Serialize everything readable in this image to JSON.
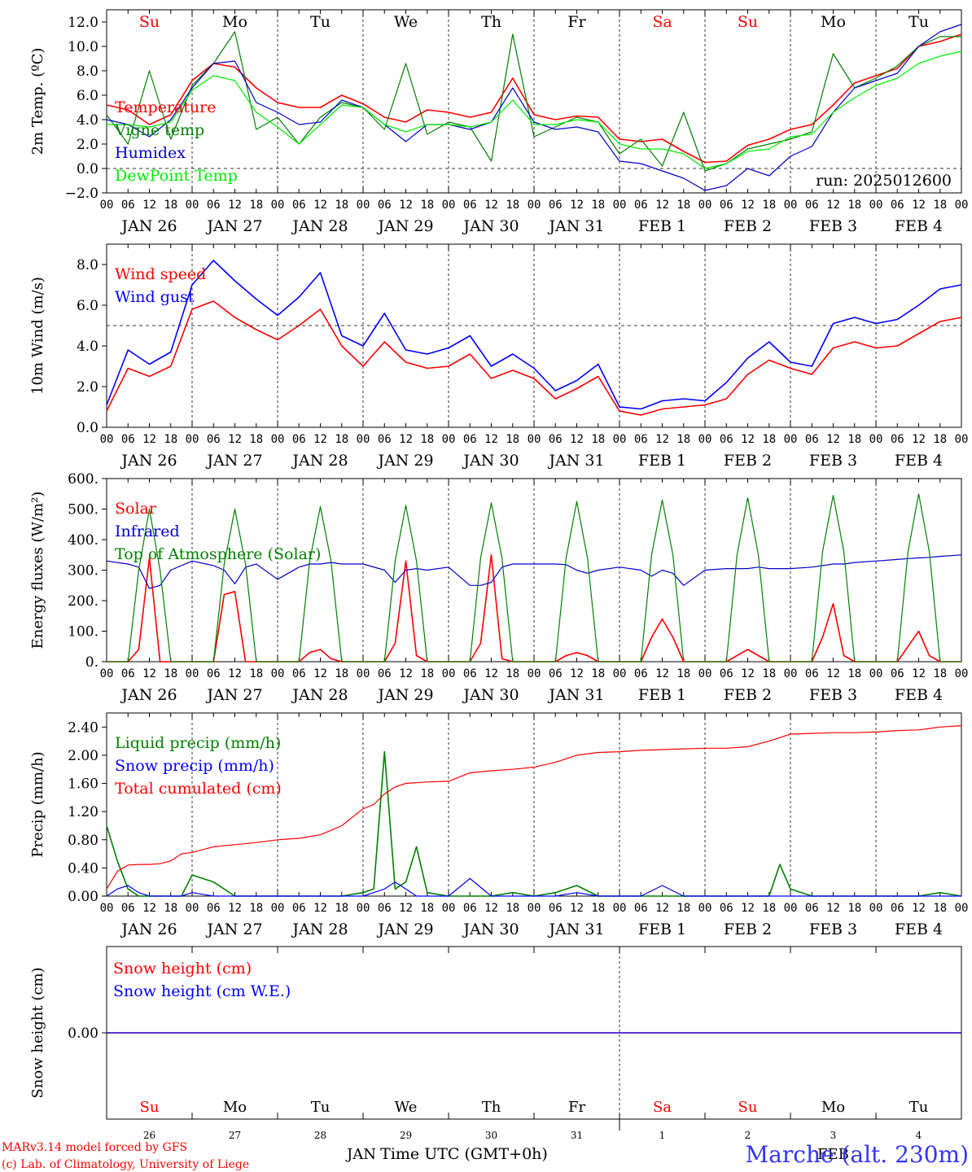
{
  "chart_data": [
    {
      "type": "line",
      "ylabel": "2m Temp. (ºC)",
      "ylim": [
        -2,
        12
      ],
      "yticks": [
        "12.0",
        "10.0",
        "8.0",
        "6.0",
        "4.0",
        "2.0",
        "0.0",
        "−2.0"
      ],
      "reference_line": 0,
      "run_label": "run: 2025012600",
      "x_hours": [
        0,
        6,
        12,
        18,
        24,
        30,
        36,
        42,
        48,
        54,
        60,
        66,
        72,
        78,
        84,
        90,
        96,
        102,
        108,
        114,
        120,
        126,
        132,
        138,
        144,
        150,
        156,
        162,
        168,
        174,
        180,
        186,
        192,
        198,
        204,
        210,
        216,
        222,
        228,
        234,
        240
      ],
      "series": [
        {
          "name": "Temperature",
          "color": "#ff0000",
          "values": [
            5.2,
            4.8,
            3.6,
            4.4,
            7.2,
            8.6,
            8.3,
            6.6,
            5.4,
            5.0,
            5.0,
            6.0,
            5.3,
            4.2,
            3.8,
            4.8,
            4.6,
            4.2,
            4.6,
            7.4,
            4.4,
            4.0,
            4.3,
            4.2,
            2.4,
            2.2,
            2.4,
            1.4,
            0.5,
            0.6,
            1.9,
            2.4,
            3.2,
            3.6,
            5.2,
            7.0,
            7.6,
            8.2,
            10.0,
            10.4,
            11.0
          ]
        },
        {
          "name": "Vigne temp",
          "color": "#008000",
          "values": [
            4.4,
            2.0,
            8.0,
            2.4,
            6.8,
            8.6,
            11.2,
            3.2,
            4.2,
            2.0,
            4.2,
            5.4,
            5.0,
            3.2,
            8.6,
            2.8,
            3.8,
            3.4,
            0.6,
            11.0,
            2.6,
            3.4,
            4.2,
            3.8,
            1.2,
            2.4,
            0.2,
            4.6,
            -0.2,
            0.4,
            1.6,
            2.0,
            2.4,
            3.0,
            9.4,
            6.6,
            7.4,
            8.4,
            10.0,
            10.8,
            10.8
          ]
        },
        {
          "name": "Humidex",
          "color": "#0000cc",
          "values": [
            4.0,
            3.6,
            2.6,
            4.0,
            6.6,
            8.6,
            8.8,
            5.4,
            4.6,
            3.6,
            3.8,
            5.6,
            5.0,
            3.6,
            2.2,
            3.6,
            3.6,
            3.2,
            3.8,
            6.6,
            3.8,
            3.2,
            3.4,
            3.0,
            0.6,
            0.4,
            -0.2,
            -0.8,
            -1.8,
            -1.4,
            0.0,
            -0.6,
            1.0,
            1.8,
            4.6,
            6.6,
            7.2,
            7.8,
            10.0,
            11.2,
            11.8
          ]
        },
        {
          "name": "DewPoint Temp",
          "color": "#00ee00",
          "values": [
            3.6,
            3.6,
            3.4,
            3.8,
            6.4,
            7.6,
            7.2,
            4.6,
            3.4,
            2.0,
            3.6,
            5.2,
            5.0,
            3.6,
            3.0,
            3.6,
            3.6,
            3.4,
            3.8,
            5.6,
            3.6,
            3.6,
            4.0,
            3.8,
            2.0,
            1.6,
            1.6,
            1.2,
            0.0,
            0.4,
            1.4,
            1.6,
            2.6,
            2.8,
            4.6,
            5.8,
            6.8,
            7.4,
            8.6,
            9.2,
            9.6
          ]
        }
      ]
    },
    {
      "type": "line",
      "ylabel": "10m Wind (m/s)",
      "ylim": [
        0,
        9
      ],
      "yticks": [
        "8.0",
        "6.0",
        "4.0",
        "2.0",
        "0.0"
      ],
      "reference_line": 5,
      "x_hours": [
        0,
        6,
        12,
        18,
        24,
        30,
        36,
        42,
        48,
        54,
        60,
        66,
        72,
        78,
        84,
        90,
        96,
        102,
        108,
        114,
        120,
        126,
        132,
        138,
        144,
        150,
        156,
        162,
        168,
        174,
        180,
        186,
        192,
        198,
        204,
        210,
        216,
        222,
        228,
        234,
        240
      ],
      "series": [
        {
          "name": "Wind speed",
          "color": "#ff0000",
          "values": [
            0.8,
            2.9,
            2.5,
            3.0,
            5.8,
            6.2,
            5.4,
            4.8,
            4.3,
            5.0,
            5.8,
            4.0,
            3.0,
            4.2,
            3.2,
            2.9,
            3.0,
            3.6,
            2.4,
            2.8,
            2.4,
            1.4,
            1.9,
            2.5,
            0.8,
            0.6,
            0.9,
            1.0,
            1.1,
            1.4,
            2.6,
            3.3,
            2.9,
            2.6,
            3.9,
            4.2,
            3.9,
            4.0,
            4.6,
            5.2,
            5.4
          ]
        },
        {
          "name": "Wind gust",
          "color": "#0000ff",
          "values": [
            1.1,
            3.8,
            3.1,
            3.7,
            7.0,
            8.2,
            7.2,
            6.3,
            5.5,
            6.4,
            7.6,
            4.5,
            4.0,
            5.6,
            3.8,
            3.6,
            3.9,
            4.5,
            3.0,
            3.6,
            2.9,
            1.8,
            2.3,
            3.1,
            1.0,
            0.9,
            1.3,
            1.4,
            1.3,
            2.2,
            3.4,
            4.2,
            3.2,
            3.0,
            5.1,
            5.4,
            5.1,
            5.3,
            6.0,
            6.8,
            7.0
          ]
        }
      ]
    },
    {
      "type": "line",
      "ylabel": "Energy fluxes (W/m²)",
      "ylim": [
        0,
        600
      ],
      "yticks": [
        "600.",
        "500.",
        "400.",
        "300.",
        "200.",
        "100.",
        "0."
      ],
      "x_hours": [
        0,
        6,
        9,
        12,
        15,
        18,
        24,
        30,
        33,
        36,
        39,
        42,
        48,
        54,
        57,
        60,
        63,
        66,
        72,
        78,
        81,
        84,
        87,
        90,
        96,
        102,
        105,
        108,
        111,
        114,
        120,
        126,
        129,
        132,
        135,
        138,
        144,
        150,
        153,
        156,
        159,
        162,
        168,
        174,
        177,
        180,
        183,
        186,
        192,
        198,
        201,
        204,
        207,
        210,
        216,
        222,
        225,
        228,
        231,
        234,
        240
      ],
      "series": [
        {
          "name": "Solar",
          "color": "#ff0000",
          "values": [
            0,
            0,
            40,
            340,
            0,
            0,
            0,
            0,
            220,
            230,
            0,
            0,
            0,
            0,
            30,
            40,
            10,
            0,
            0,
            0,
            60,
            330,
            20,
            0,
            0,
            0,
            60,
            350,
            10,
            0,
            0,
            0,
            20,
            30,
            20,
            0,
            0,
            0,
            80,
            140,
            80,
            0,
            0,
            0,
            20,
            40,
            20,
            0,
            0,
            0,
            80,
            190,
            20,
            0,
            0,
            0,
            50,
            100,
            20,
            0,
            0
          ]
        },
        {
          "name": "Infrared",
          "color": "#0000cc",
          "values": [
            330,
            320,
            310,
            240,
            250,
            300,
            330,
            315,
            300,
            255,
            310,
            320,
            270,
            310,
            320,
            320,
            325,
            320,
            320,
            300,
            260,
            300,
            305,
            300,
            310,
            250,
            250,
            260,
            310,
            320,
            320,
            320,
            318,
            300,
            290,
            300,
            310,
            300,
            280,
            300,
            290,
            250,
            300,
            305,
            305,
            305,
            310,
            305,
            305,
            310,
            315,
            320,
            320,
            325,
            330,
            335,
            338,
            340,
            342,
            345,
            350
          ]
        },
        {
          "name": "Top of Atmosphere (Solar)",
          "color": "#008000",
          "values": [
            0,
            0,
            300,
            500,
            300,
            0,
            0,
            0,
            320,
            500,
            320,
            0,
            0,
            0,
            330,
            508,
            330,
            0,
            0,
            0,
            330,
            512,
            330,
            0,
            0,
            0,
            340,
            520,
            340,
            0,
            0,
            0,
            340,
            525,
            340,
            0,
            0,
            0,
            350,
            530,
            350,
            0,
            0,
            0,
            350,
            537,
            350,
            0,
            0,
            0,
            360,
            545,
            360,
            0,
            0,
            0,
            360,
            550,
            360,
            0,
            0
          ]
        }
      ]
    },
    {
      "type": "line",
      "ylabel": "Precip (mm/h)",
      "ylim": [
        0,
        2.6
      ],
      "yticks": [
        "2.40",
        "2.00",
        "1.60",
        "1.20",
        "0.80",
        "0.40",
        "0.00"
      ],
      "x_hours": [
        0,
        3,
        6,
        9,
        12,
        15,
        18,
        21,
        24,
        30,
        36,
        42,
        48,
        54,
        60,
        66,
        72,
        75,
        78,
        81,
        84,
        87,
        90,
        96,
        102,
        108,
        114,
        120,
        126,
        132,
        138,
        144,
        150,
        156,
        162,
        168,
        174,
        180,
        186,
        189,
        192,
        198,
        204,
        210,
        216,
        222,
        228,
        234,
        240
      ],
      "series": [
        {
          "name": "Liquid precip (mm/h)",
          "color": "#008000",
          "values": [
            1.0,
            0.5,
            0.1,
            0.0,
            0.0,
            0.0,
            0.0,
            0.0,
            0.3,
            0.2,
            0.0,
            0.0,
            0.0,
            0.0,
            0.0,
            0.0,
            0.05,
            0.1,
            2.05,
            0.1,
            0.2,
            0.7,
            0.05,
            0.0,
            0.0,
            0.0,
            0.05,
            0.0,
            0.05,
            0.15,
            0.0,
            0.0,
            0.0,
            0.0,
            0.0,
            0.0,
            0.0,
            0.0,
            0.0,
            0.45,
            0.1,
            0.0,
            0.0,
            0.0,
            0.0,
            0.0,
            0.0,
            0.05,
            0.0
          ]
        },
        {
          "name": "Snow precip (mm/h)",
          "color": "#0000ff",
          "values": [
            0.0,
            0.1,
            0.15,
            0.05,
            0.0,
            0.0,
            0.0,
            0.0,
            0.05,
            0.0,
            0.0,
            0.0,
            0.0,
            0.0,
            0.0,
            0.0,
            0.0,
            0.05,
            0.1,
            0.2,
            0.1,
            0.0,
            0.0,
            0.0,
            0.25,
            0.0,
            0.0,
            0.0,
            0.0,
            0.05,
            0.0,
            0.0,
            0.0,
            0.15,
            0.0,
            0.0,
            0.0,
            0.0,
            0.0,
            0.0,
            0.0,
            0.0,
            0.0,
            0.0,
            0.0,
            0.0,
            0.0,
            0.0,
            0.0
          ]
        },
        {
          "name": "Total cumulated (cm)",
          "color": "#ff0000",
          "values": [
            0.1,
            0.35,
            0.44,
            0.45,
            0.45,
            0.46,
            0.5,
            0.6,
            0.62,
            0.7,
            0.73,
            0.76,
            0.8,
            0.82,
            0.87,
            1.0,
            1.24,
            1.3,
            1.45,
            1.55,
            1.6,
            1.61,
            1.62,
            1.63,
            1.75,
            1.78,
            1.8,
            1.83,
            1.9,
            2.0,
            2.04,
            2.05,
            2.07,
            2.08,
            2.09,
            2.1,
            2.1,
            2.12,
            2.2,
            2.25,
            2.3,
            2.31,
            2.32,
            2.32,
            2.33,
            2.35,
            2.36,
            2.4,
            2.42
          ]
        }
      ]
    },
    {
      "type": "line",
      "ylabel": "Snow height (cm)",
      "yticks": [
        "0.00"
      ],
      "x_hours": [
        0,
        240
      ],
      "series": [
        {
          "name": "Snow height (cm)",
          "color": "#ff0000",
          "values": [
            0,
            0
          ]
        },
        {
          "name": "Snow height (cm W.E.)",
          "color": "#0000ff",
          "values": [
            0,
            0
          ]
        }
      ]
    }
  ],
  "hour_ticks": [
    "00",
    "06",
    "12",
    "18"
  ],
  "final_hour": "00",
  "date_labels": [
    "JAN 26",
    "JAN 27",
    "JAN 28",
    "JAN 29",
    "JAN 30",
    "JAN 31",
    "FEB  1",
    "FEB  2",
    "FEB  3",
    "FEB  4"
  ],
  "weekdays": [
    "Su",
    "Mo",
    "Tu",
    "We",
    "Th",
    "Fr",
    "Sa",
    "Su",
    "Mo",
    "Tu"
  ],
  "weekday_colors": [
    "#ff0000",
    "#000000",
    "#000000",
    "#000000",
    "#000000",
    "#000000",
    "#ff0000",
    "#ff0000",
    "#000000",
    "#000000"
  ],
  "bottom_days": [
    "26",
    "27",
    "28",
    "29",
    "30",
    "31",
    "1",
    "2",
    "3",
    "4"
  ],
  "bottom_month_left": "JAN",
  "bottom_month_right": "FEB",
  "xlabel": "Time UTC (GMT+0h)",
  "credits": [
    "MARv3.14 model forced by GFS",
    "(c) Lab. of Climatology, University of Liege"
  ],
  "station": "Marche (alt. 230m)"
}
